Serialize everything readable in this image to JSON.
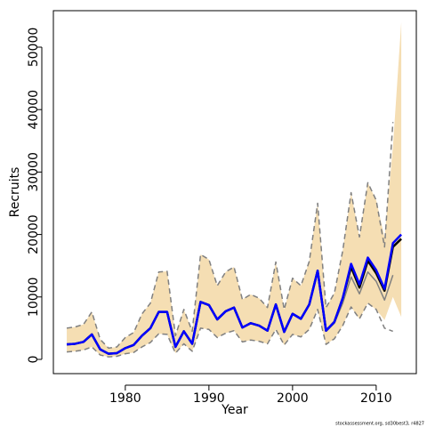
{
  "chart_data": {
    "type": "line",
    "xlabel": "Year",
    "ylabel": "Recruits",
    "footnote": "stockassessment.org, sd30best3, r4827",
    "xlim": [
      1971.4,
      2014.8
    ],
    "ylim": [
      -2280,
      55840
    ],
    "xticks": [
      1980,
      1990,
      2000,
      2010
    ],
    "yticks": [
      0,
      10000,
      20000,
      30000,
      40000,
      50000
    ],
    "x": [
      1973,
      1974,
      1975,
      1976,
      1977,
      1978,
      1979,
      1980,
      1981,
      1982,
      1983,
      1984,
      1985,
      1986,
      1987,
      1988,
      1989,
      1990,
      1991,
      1992,
      1993,
      1994,
      1995,
      1996,
      1997,
      1998,
      1999,
      2000,
      2001,
      2002,
      2003,
      2004,
      2005,
      2006,
      2007,
      2008,
      2009,
      2010,
      2011,
      2012,
      2013
    ],
    "band": {
      "color": "#f5deb3",
      "upper": [
        5000,
        5200,
        5600,
        7600,
        3200,
        1800,
        2000,
        3500,
        4300,
        7300,
        9000,
        14000,
        14100,
        3800,
        8000,
        4500,
        16800,
        16000,
        11800,
        14000,
        14800,
        9600,
        10400,
        9800,
        8300,
        15600,
        8000,
        13000,
        11800,
        15700,
        25000,
        8300,
        10600,
        17400,
        26700,
        19600,
        28300,
        25500,
        19500,
        34000,
        54000
      ],
      "lower": [
        1200,
        1300,
        1500,
        2000,
        700,
        400,
        500,
        900,
        1100,
        2000,
        2700,
        4100,
        4000,
        1000,
        2500,
        1300,
        5000,
        4800,
        3500,
        4200,
        4600,
        2800,
        3100,
        2900,
        2500,
        4800,
        2300,
        4000,
        3600,
        4800,
        8000,
        2400,
        3300,
        5400,
        8400,
        6500,
        9000,
        8000,
        6300,
        10000,
        6800
      ]
    },
    "series": [
      {
        "color": "#808080",
        "dashed": true,
        "width": 1.5,
        "values": [
          5000,
          5200,
          5600,
          7600,
          3200,
          1800,
          2000,
          3500,
          4300,
          7300,
          9000,
          14000,
          14100,
          3800,
          8000,
          4500,
          16800,
          16000,
          11800,
          14000,
          14800,
          9600,
          10400,
          9800,
          8300,
          15600,
          8000,
          13000,
          11800,
          15700,
          25000,
          8300,
          10600,
          17400,
          26700,
          19600,
          28300,
          25500,
          18000,
          38000,
          null
        ]
      },
      {
        "color": "#808080",
        "dashed": true,
        "width": 1.5,
        "values": [
          1200,
          1300,
          1500,
          2000,
          700,
          400,
          500,
          900,
          1100,
          2000,
          2700,
          4100,
          4000,
          1000,
          2500,
          1300,
          5000,
          4800,
          3500,
          4200,
          4600,
          2800,
          3100,
          2900,
          2500,
          4800,
          2300,
          4000,
          3600,
          4800,
          8000,
          2400,
          3300,
          5400,
          8400,
          6500,
          9000,
          8000,
          5000,
          4500,
          null
        ]
      },
      {
        "color": "#808080",
        "dashed": false,
        "width": 1.5,
        "values": [
          null,
          null,
          null,
          null,
          null,
          null,
          null,
          null,
          null,
          null,
          null,
          null,
          null,
          null,
          null,
          null,
          null,
          null,
          null,
          null,
          null,
          null,
          null,
          null,
          null,
          null,
          null,
          null,
          null,
          null,
          null,
          4500,
          5800,
          9000,
          13200,
          10500,
          14000,
          12500,
          9500,
          13500,
          null
        ]
      },
      {
        "color": "#000000",
        "dashed": false,
        "width": 2.5,
        "values": [
          2400,
          2500,
          2800,
          4000,
          1600,
          900,
          1000,
          1800,
          2300,
          3800,
          5000,
          7600,
          7600,
          2000,
          4500,
          2500,
          9200,
          8700,
          6400,
          7700,
          8300,
          5100,
          5800,
          5400,
          4600,
          8800,
          4400,
          7300,
          6500,
          8800,
          14200,
          4600,
          6000,
          9800,
          14800,
          11500,
          15800,
          13800,
          11000,
          18000,
          19300
        ]
      },
      {
        "color": "#0000ff",
        "dashed": false,
        "width": 2.5,
        "values": [
          2400,
          2500,
          2800,
          4000,
          1600,
          900,
          1000,
          1800,
          2300,
          3800,
          5000,
          7600,
          7600,
          2000,
          4500,
          2500,
          9200,
          8700,
          6400,
          7700,
          8300,
          5100,
          5800,
          5400,
          4600,
          8800,
          4400,
          7300,
          6500,
          8800,
          14200,
          4600,
          6000,
          9800,
          15300,
          12000,
          16300,
          14300,
          11300,
          18600,
          20000
        ]
      }
    ]
  }
}
